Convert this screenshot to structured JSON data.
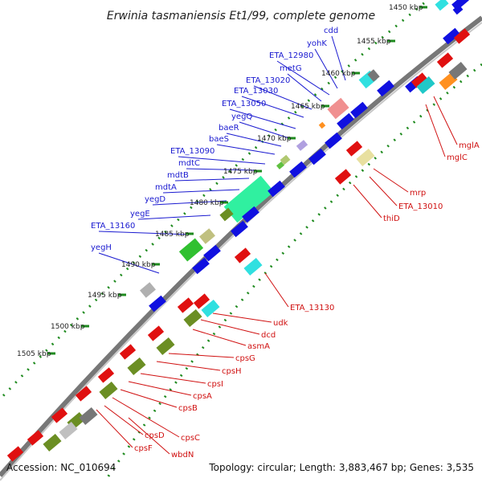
{
  "title": "Erwinia tasmaniensis Et1/99, complete genome",
  "footer": {
    "accession": "Accession: NC_010694",
    "topology": "Topology: circular; Length: 3,883,467 bp; Genes: 3,535"
  },
  "kbp_labels": [
    "1450 kbp",
    "1455 kbp",
    "1460 kbp",
    "1465 kbp",
    "1470 kbp",
    "1475 kbp",
    "1480 kbp",
    "1485 kbp",
    "1490 kbp",
    "1495 kbp",
    "1500 kbp",
    "1505 kbp"
  ],
  "blue_labels": [
    "cdd",
    "yohK",
    "ETA_12980",
    "metG",
    "ETA_13020",
    "ETA_13030",
    "ETA_13050",
    "yegQ",
    "baeR",
    "baeS",
    "ETA_13090",
    "mdtC",
    "mdtB",
    "mdtA",
    "yegD",
    "yegE",
    "ETA_13160",
    "yegH"
  ],
  "red_labels": [
    "mglA",
    "mglC",
    "mrp",
    "ETA_13010",
    "thiD",
    "ETA_13130",
    "udk",
    "dcd",
    "asmA",
    "cpsG",
    "cpsH",
    "cpsI",
    "cpsA",
    "cpsB",
    "cpsC",
    "cpsD",
    "wbdN",
    "cpsF"
  ],
  "colors": {
    "forward_gene": "#1010e0",
    "reverse_gene": "#e01010",
    "backbone": "#888888",
    "tick_dots": "#228822",
    "label_blue": "#1a1ad0",
    "label_red": "#d01010"
  }
}
